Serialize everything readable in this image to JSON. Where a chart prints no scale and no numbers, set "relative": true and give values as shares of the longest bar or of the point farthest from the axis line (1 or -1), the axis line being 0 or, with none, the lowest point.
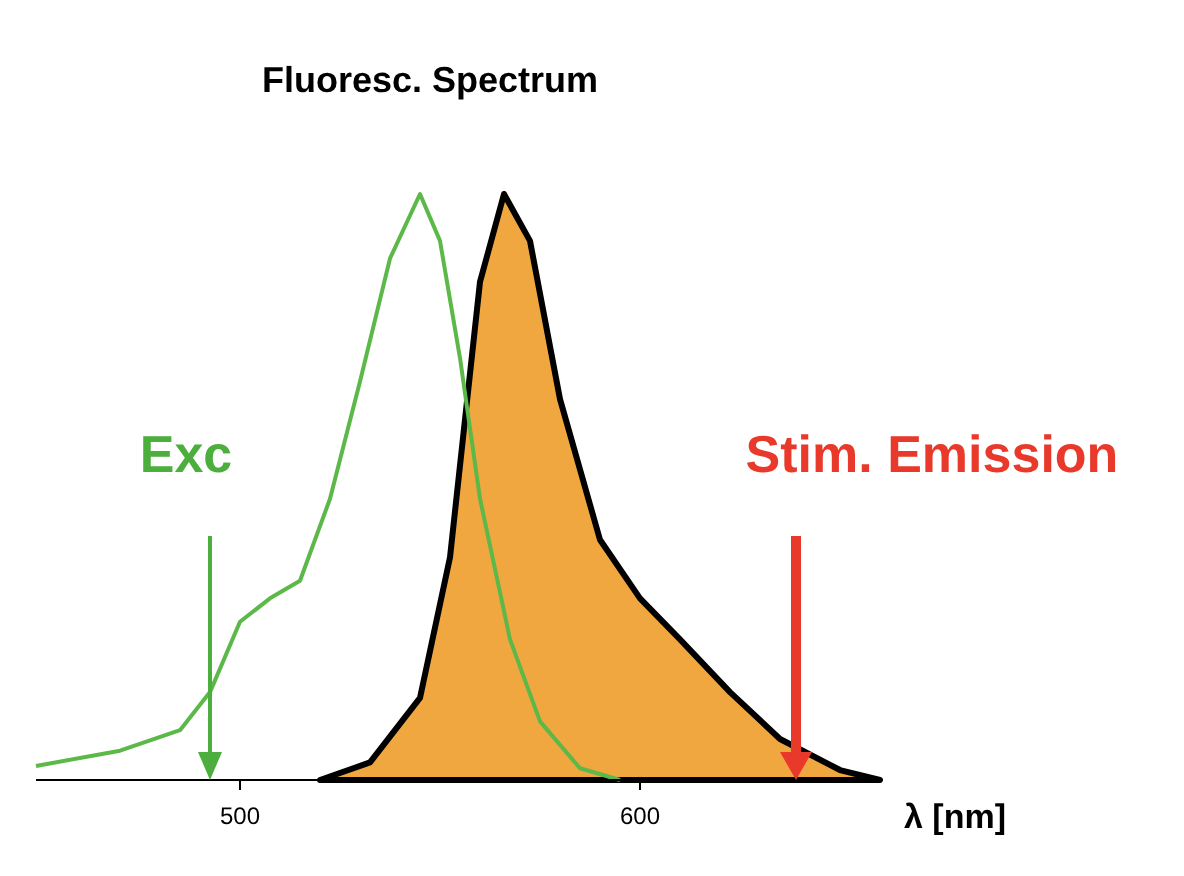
{
  "chart_data": {
    "type": "line",
    "title": "Fluoresc. Spectrum",
    "xlabel": "λ [nm]",
    "relative": true,
    "tick_labels": "x",
    "xlim": [
      449,
      660
    ],
    "xticks": [
      500,
      600
    ],
    "series": [
      {
        "color": "#5cb848",
        "x": [
          449,
          470,
          485,
          492.5,
          500,
          507.5,
          515,
          522.5,
          530,
          537.5,
          545,
          550,
          555,
          560,
          567.5,
          575,
          585,
          595
        ],
        "values": [
          0.024,
          0.05,
          0.085,
          0.15,
          0.27,
          0.31,
          0.34,
          0.48,
          0.68,
          0.89,
          1.0,
          0.92,
          0.72,
          0.48,
          0.24,
          0.1,
          0.02,
          0
        ]
      },
      {
        "type": "area",
        "color": "#f0a030",
        "x": [
          520,
          532.5,
          545,
          552.5,
          560,
          566,
          572.5,
          580,
          590,
          600,
          610,
          622.5,
          635,
          650,
          660
        ],
        "values": [
          0,
          0.03,
          0.14,
          0.38,
          0.85,
          1.0,
          0.92,
          0.65,
          0.41,
          0.31,
          0.24,
          0.15,
          0.07,
          0.017,
          0
        ]
      }
    ],
    "annotations": [
      "Exc",
      "Stim. Emission"
    ]
  }
}
